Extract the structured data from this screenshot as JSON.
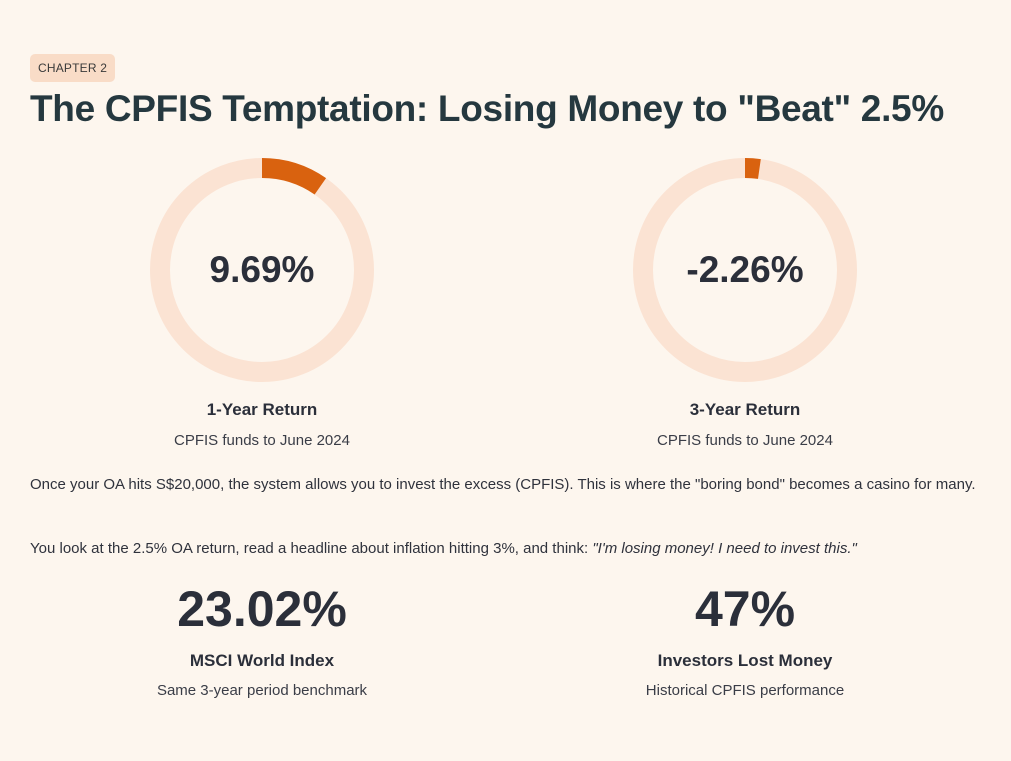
{
  "chapter": {
    "badge": "CHAPTER 2"
  },
  "title": "The CPFIS Temptation: Losing Money to \"Beat\" 2.5%",
  "colors": {
    "background": "#fdf6ee",
    "ring_track": "#fbe3d3",
    "ring_fill": "#d9620f",
    "badge_bg": "#f9dcc7",
    "title": "#25383f"
  },
  "rings": [
    {
      "value_text": "9.69%",
      "fill_fraction": 0.0969,
      "label": "1-Year Return",
      "sub": "CPFIS funds to June 2024"
    },
    {
      "value_text": "-2.26%",
      "fill_fraction": 0.0226,
      "label": "3-Year Return",
      "sub": "CPFIS funds to June 2024"
    }
  ],
  "paragraphs": {
    "p1": "Once your OA hits S$20,000, the system allows you to invest the excess (CPFIS). This is where the \"boring bond\" becomes a casino for many.",
    "p2_text": "You look at the 2.5% OA return, read a headline about inflation hitting 3%, and think: ",
    "p2_quote": "\"I'm losing money! I need to invest this.\""
  },
  "stats": [
    {
      "value": "23.02%",
      "label": "MSCI World Index",
      "sub": "Same 3-year period benchmark"
    },
    {
      "value": "47%",
      "label": "Investors Lost Money",
      "sub": "Historical CPFIS performance"
    }
  ]
}
